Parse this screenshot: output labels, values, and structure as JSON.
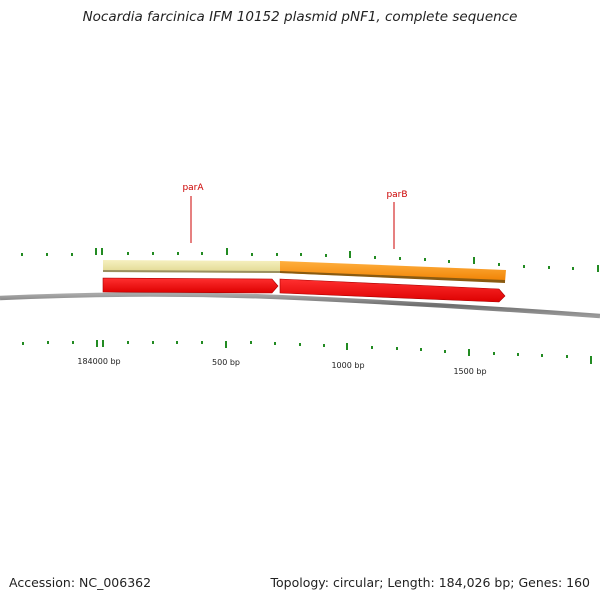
{
  "title": "Nocardia farcinica IFM 10152 plasmid pNF1, complete sequence",
  "footer": {
    "accession": "Accession: NC_006362",
    "summary": "Topology: circular; Length: 184,026 bp; Genes: 160"
  },
  "genes": [
    {
      "name": "parA",
      "color": "#eee8a0"
    },
    {
      "name": "parB",
      "color": "#ff9a10"
    }
  ],
  "scale_labels": [
    "184000 bp",
    "500 bp",
    "1000 bp",
    "1500 bp"
  ],
  "colors": {
    "backbone": "#808080",
    "cds": "#ee0000",
    "tick": "#228b22",
    "gene_label": "#cc0000",
    "text": "#222222"
  }
}
